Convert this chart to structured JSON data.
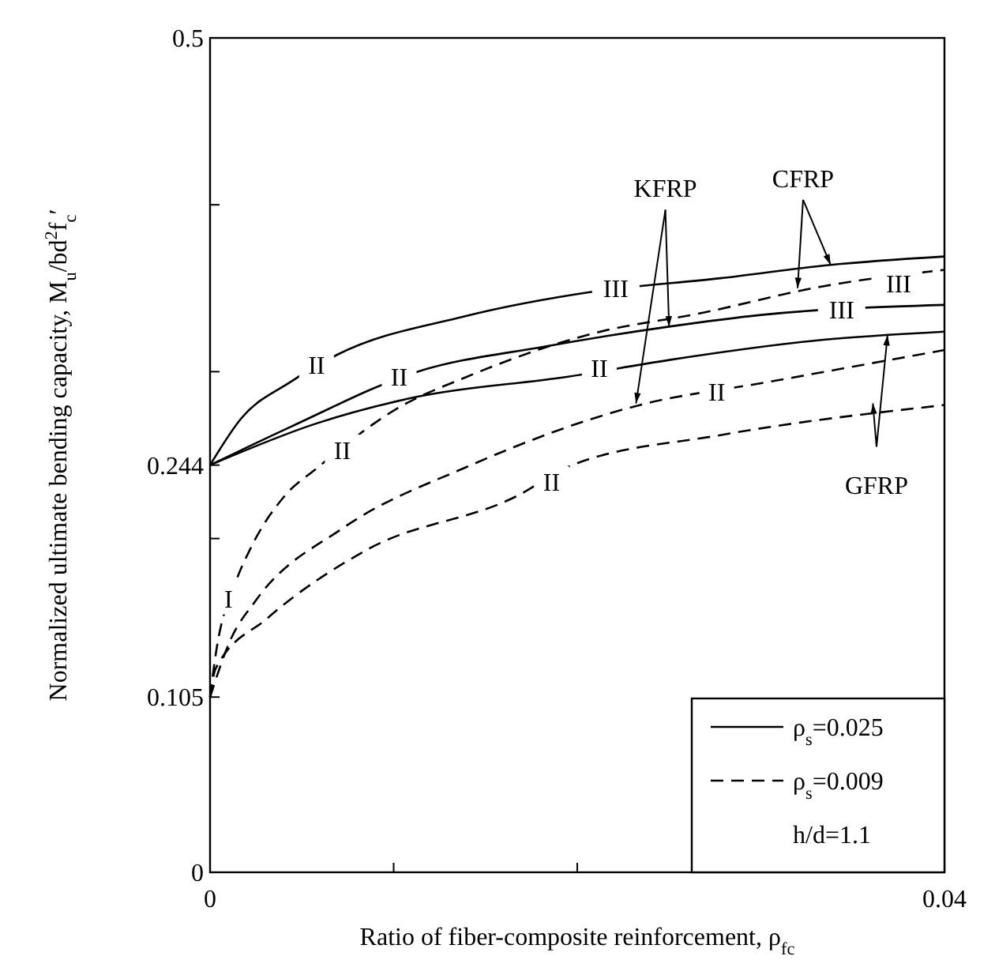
{
  "chart_data": {
    "type": "line",
    "xlabel": "Ratio of fiber-composite reinforcement, ρ$_{fc}$",
    "ylabel": "Normalized ultimate bending capacity, M$_{u}$/bd$^{2}$f$_{c}$′",
    "xlim": [
      0,
      0.04
    ],
    "ylim": [
      0,
      0.5
    ],
    "xticks": [
      0,
      {
        "value": 0.01,
        "label": null
      },
      {
        "value": 0.02,
        "label": null
      },
      {
        "value": 0.03,
        "label": null
      },
      0.04
    ],
    "yticks": [
      0,
      0.105,
      {
        "value": 0.2,
        "label": null
      },
      0.244,
      {
        "value": 0.3,
        "label": null
      },
      {
        "value": 0.4,
        "label": null
      },
      0.5
    ],
    "grid": false,
    "legend": "bottom right",
    "series": [
      {
        "name": "ρ$_{s}$=0.025",
        "color": "#000000",
        "line_style": "solid",
        "x": [
          0,
          0.0017,
          0.0044,
          0.0069,
          0.0138,
          0.0209,
          0.0278,
          0.0338,
          0.04
        ],
        "values": [
          0.244,
          0.272,
          0.294,
          0.31,
          0.333,
          0.348,
          0.356,
          0.364,
          0.369
        ]
      },
      {
        "color": "#000000",
        "line_style": "solid",
        "x": [
          0,
          0.0044,
          0.0113,
          0.0182,
          0.025,
          0.03,
          0.04
        ],
        "values": [
          0.244,
          0.267,
          0.3,
          0.315,
          0.327,
          0.334,
          0.34
        ]
      },
      {
        "color": "#000000",
        "line_style": "solid",
        "x": [
          0,
          0.0058,
          0.0113,
          0.0195,
          0.025,
          0.0333,
          0.04
        ],
        "values": [
          0.244,
          0.269,
          0.285,
          0.297,
          0.307,
          0.319,
          0.324
        ]
      },
      {
        "name": "ρ$_{s}$=0.009",
        "color": "#000000",
        "line_style": "dashed",
        "x": [
          0,
          0.0003,
          0.0014,
          0.0022,
          0.0041,
          0.0058,
          0.0102,
          0.014,
          0.0209,
          0.0267,
          0.0333,
          0.04
        ],
        "values": [
          0.105,
          0.13,
          0.174,
          0.194,
          0.226,
          0.242,
          0.278,
          0.297,
          0.323,
          0.335,
          0.351,
          0.361
        ]
      },
      {
        "color": "#000000",
        "line_style": "dashed",
        "x": [
          0,
          0.0011,
          0.0025,
          0.0072,
          0.014,
          0.0234,
          0.0305,
          0.04
        ],
        "values": [
          0.105,
          0.139,
          0.163,
          0.206,
          0.243,
          0.28,
          0.294,
          0.313
        ]
      },
      {
        "color": "#000000",
        "line_style": "dashed",
        "x": [
          0,
          0.0003,
          0.0031,
          0.0085,
          0.0168,
          0.0195,
          0.0278,
          0.04
        ],
        "values": [
          0.105,
          0.122,
          0.152,
          0.193,
          0.226,
          0.243,
          0.262,
          0.28
        ]
      }
    ],
    "annotations": [
      "h/d=1.1",
      {
        "text": "KFRP",
        "x": 0.025,
        "y": 0.327
      },
      {
        "text": "CFRP",
        "x": 0.0338,
        "y": 0.364
      },
      {
        "text": "GFRP",
        "x": 0.0369,
        "y": 0.322
      },
      {
        "text": "II",
        "x": 0.0058,
        "y": 0.304
      },
      {
        "text": "II",
        "x": 0.0103,
        "y": 0.297
      },
      {
        "text": "II",
        "x": 0.0212,
        "y": 0.302
      },
      {
        "text": "II",
        "x": 0.0072,
        "y": 0.253
      },
      {
        "text": "II",
        "x": 0.0276,
        "y": 0.288
      },
      {
        "text": "II",
        "x": 0.0186,
        "y": 0.234
      },
      {
        "text": "III",
        "x": 0.0221,
        "y": 0.35
      },
      {
        "text": "III",
        "x": 0.0344,
        "y": 0.337
      },
      {
        "text": "III",
        "x": 0.0375,
        "y": 0.353
      },
      {
        "text": "I",
        "x": 0.001,
        "y": 0.164
      }
    ]
  }
}
